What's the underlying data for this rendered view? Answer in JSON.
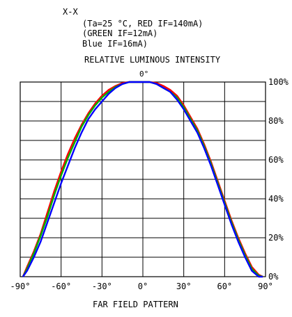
{
  "header": {
    "lines": [
      "X-X",
      "(Ta=25 °C, RED IF=140mA)",
      "(GREEN    IF=12mA)",
      "Blue   IF=16mA)"
    ]
  },
  "chart_data": {
    "type": "line",
    "title": "RELATIVE LUMINOUS INTENSITY",
    "xlabel": "FAR FIELD PATTERN",
    "ylabel": "",
    "xlim": [
      -90,
      90
    ],
    "ylim": [
      0,
      100
    ],
    "x_ticks": [
      -90,
      -60,
      -30,
      0,
      30,
      60,
      90
    ],
    "x_tick_labels": [
      "-90°",
      "-60°",
      "-30°",
      "0°",
      "30°",
      "60°",
      "90°"
    ],
    "y_ticks": [
      0,
      20,
      40,
      60,
      80,
      100
    ],
    "y_tick_labels": [
      "0%",
      "20%",
      "40%",
      "60%",
      "80%",
      "100%"
    ],
    "top_label": "0°",
    "grid": true,
    "x": [
      -88,
      -85,
      -80,
      -75,
      -70,
      -65,
      -60,
      -55,
      -50,
      -45,
      -40,
      -35,
      -30,
      -25,
      -20,
      -15,
      -10,
      -5,
      0,
      5,
      10,
      15,
      20,
      25,
      30,
      35,
      40,
      45,
      50,
      55,
      60,
      65,
      70,
      75,
      80,
      85,
      88
    ],
    "series": [
      {
        "color": "#ff0000",
        "values": [
          0,
          5,
          13,
          22,
          33,
          44,
          54,
          63,
          71,
          78,
          84,
          89,
          93,
          96,
          98,
          99.5,
          100,
          100,
          100,
          100,
          99.5,
          98,
          96,
          93,
          88,
          82,
          76,
          68,
          59,
          49,
          39,
          29,
          20,
          12,
          5,
          1,
          0
        ]
      },
      {
        "color": "#00b000",
        "values": [
          0,
          4,
          12,
          21,
          31,
          42,
          52,
          61,
          69,
          77,
          83,
          88,
          92,
          95,
          97.5,
          99,
          100,
          100,
          100,
          100,
          99,
          97,
          95,
          92,
          87,
          81,
          75,
          67,
          58,
          48,
          38,
          28,
          19,
          11,
          4,
          0.5,
          0
        ]
      },
      {
        "color": "#0000ff",
        "values": [
          0,
          3,
          10,
          18,
          28,
          38,
          48,
          57,
          66,
          74,
          81,
          86,
          90,
          94,
          97,
          99,
          100,
          100,
          100,
          100,
          99,
          97,
          95,
          91,
          86,
          80,
          74,
          66,
          57,
          47,
          37,
          27,
          18,
          10,
          3,
          0,
          0
        ]
      }
    ]
  }
}
